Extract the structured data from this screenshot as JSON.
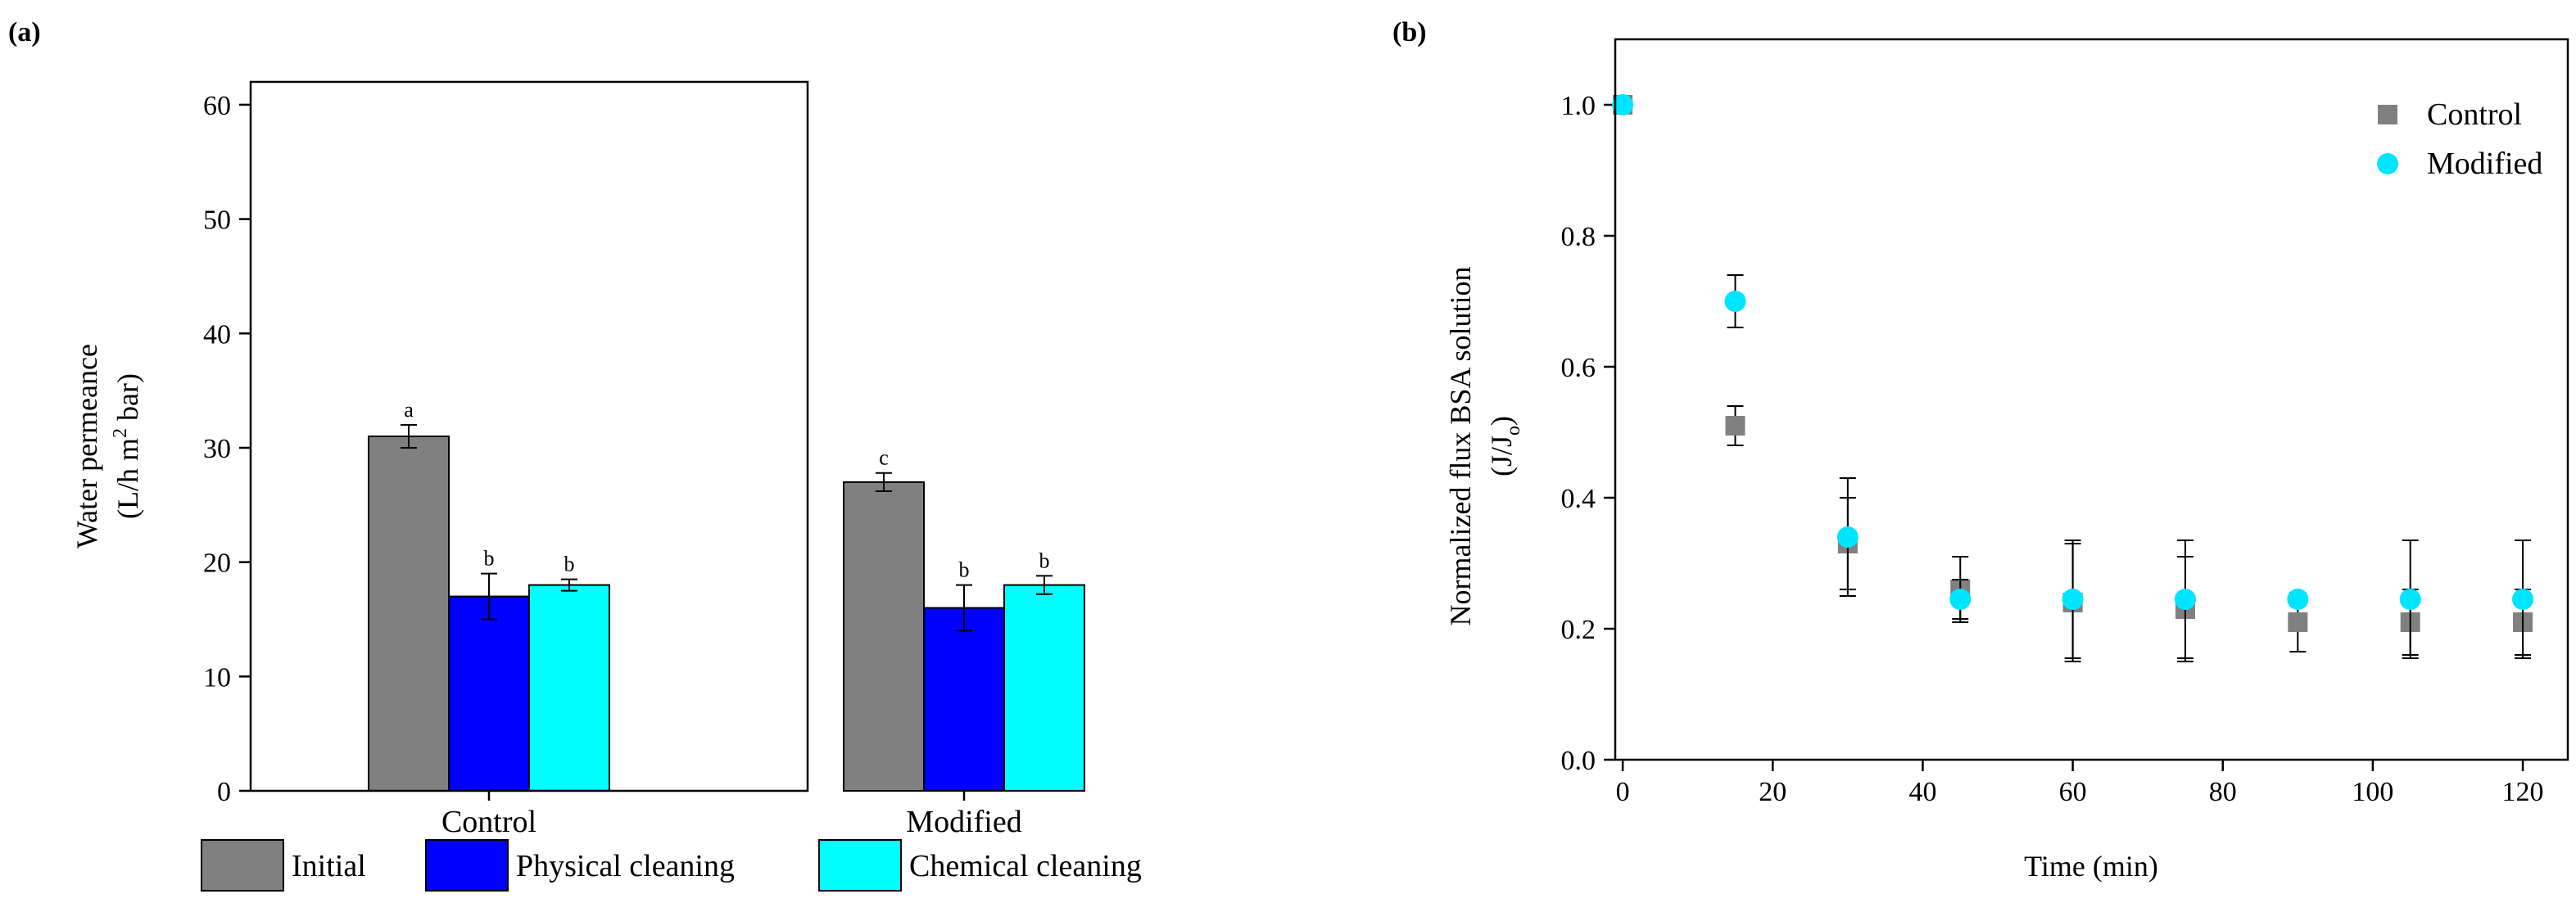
{
  "chart_data": [
    {
      "type": "bar",
      "panel_label": "(a)",
      "title": "",
      "categories": [
        "Control",
        "Modified"
      ],
      "series": [
        {
          "name": "Initial",
          "values": [
            31,
            27
          ],
          "errors": [
            1,
            0.8
          ],
          "sig": [
            "a",
            "c"
          ],
          "color": "#808080"
        },
        {
          "name": "Physical cleaning",
          "values": [
            17,
            16
          ],
          "errors": [
            2,
            2
          ],
          "sig": [
            "b",
            "b"
          ],
          "color": "#0000ff"
        },
        {
          "name": "Chemical cleaning",
          "values": [
            18,
            18
          ],
          "errors": [
            0.5,
            0.8
          ],
          "sig": [
            "b",
            "b"
          ],
          "color": "#00ffff"
        }
      ],
      "ylabel_line1": "Water permeance",
      "ylabel_line2_pre": "(L/h m",
      "ylabel_line2_sup": "2",
      "ylabel_line2_post": " bar)",
      "xlabel": "",
      "ylim": [
        0,
        62
      ],
      "yticks": [
        0,
        10,
        20,
        30,
        40,
        50,
        60
      ],
      "yticklabels": [
        "0",
        "10",
        "20",
        "30",
        "40",
        "50",
        "60"
      ],
      "legend": [
        "Initial",
        "Physical cleaning",
        "Chemical cleaning"
      ],
      "legend_position": "bottom"
    },
    {
      "type": "scatter",
      "panel_label": "(b)",
      "title": "",
      "xlabel": "Time (min)",
      "ylabel_line1": "Normalized flux BSA solution",
      "ylabel_line2_pre": "(J/J",
      "ylabel_line2_sub": "o",
      "ylabel_line2_post": ")",
      "xlim": [
        -1,
        126
      ],
      "ylim": [
        0,
        1.1
      ],
      "xticks": [
        0,
        20,
        40,
        60,
        80,
        100,
        120
      ],
      "xticklabels": [
        "0",
        "20",
        "40",
        "60",
        "80",
        "100",
        "120"
      ],
      "yticks": [
        0,
        0.2,
        0.4,
        0.6,
        0.8,
        1.0
      ],
      "yticklabels": [
        "0.0",
        "0.2",
        "0.4",
        "0.6",
        "0.8",
        "1.0"
      ],
      "series": [
        {
          "name": "Control",
          "marker": "square",
          "color": "#808080",
          "x": [
            0,
            15,
            30,
            45,
            60,
            75,
            90,
            105,
            120
          ],
          "y": [
            1.0,
            0.51,
            0.33,
            0.26,
            0.24,
            0.23,
            0.21,
            0.21,
            0.21
          ],
          "err": [
            0,
            0.03,
            0.07,
            0.05,
            0.09,
            0.08,
            0.045,
            0.05,
            0.05
          ]
        },
        {
          "name": "Modified",
          "marker": "circle",
          "color": "#00e5ff",
          "x": [
            0,
            15,
            30,
            45,
            60,
            75,
            90,
            105,
            120
          ],
          "y": [
            1.0,
            0.7,
            0.34,
            0.245,
            0.245,
            0.245,
            0.245,
            0.245,
            0.245
          ],
          "err": [
            0,
            0.04,
            0.09,
            0.03,
            0.09,
            0.09,
            0.01,
            0.09,
            0.09
          ]
        }
      ],
      "legend": [
        "Control",
        "Modified"
      ],
      "legend_position": "top-right"
    }
  ]
}
